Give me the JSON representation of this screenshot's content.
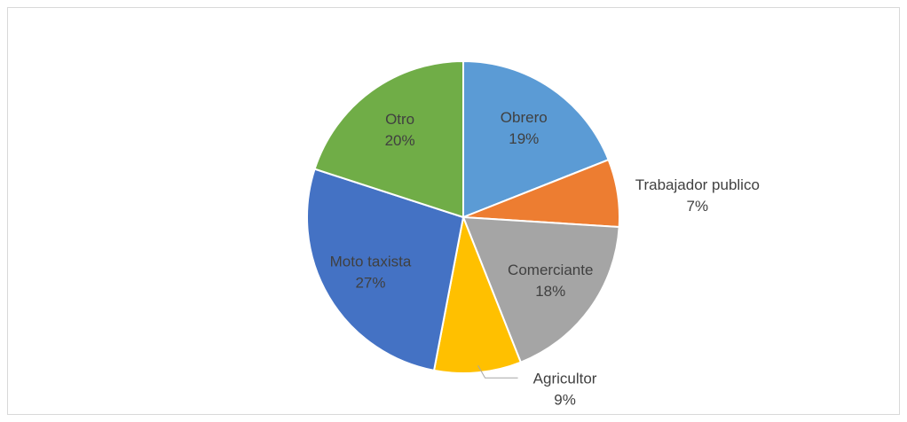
{
  "chart_data": {
    "type": "pie",
    "categories": [
      "Obrero",
      "Trabajador publico",
      "Comerciante",
      "Agricultor",
      "Moto taxista",
      "Otro"
    ],
    "values": [
      19,
      7,
      18,
      9,
      27,
      20
    ],
    "value_labels": [
      "19%",
      "7%",
      "18%",
      "9%",
      "27%",
      "20%"
    ],
    "colors": [
      "#5b9bd5",
      "#ed7d31",
      "#a5a5a5",
      "#ffc000",
      "#4472c4",
      "#70ad47"
    ]
  }
}
